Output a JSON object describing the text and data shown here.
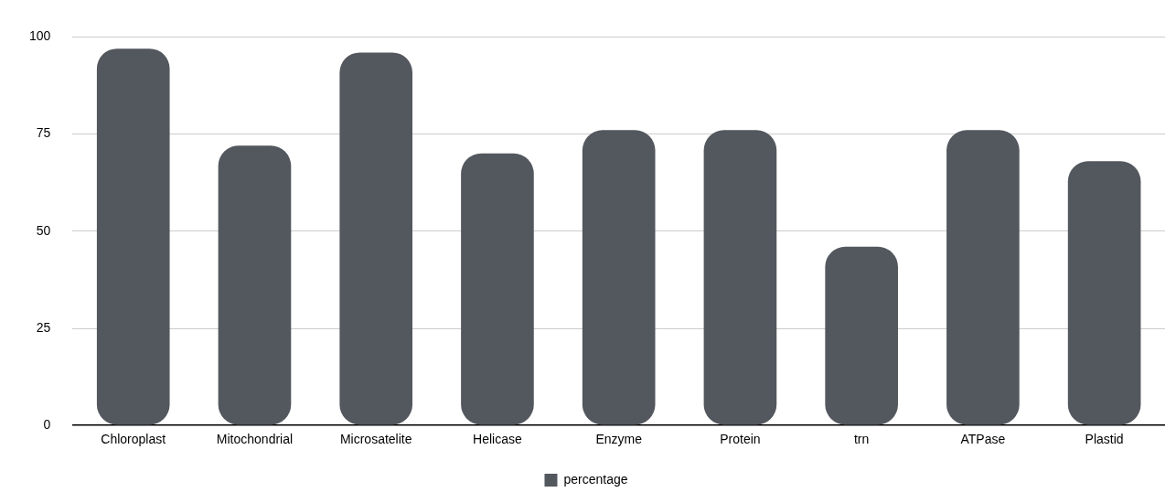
{
  "chart_data": {
    "type": "bar",
    "categories": [
      "Chloroplast",
      "Mitochondrial",
      "Microsatelite",
      "Helicase",
      "Enzyme",
      "Protein",
      "trn",
      "ATPase",
      "Plastid"
    ],
    "series": [
      {
        "name": "percentage",
        "color": "#53575e",
        "values": [
          97,
          72,
          96,
          70,
          76,
          76,
          46,
          76,
          68
        ]
      }
    ],
    "ylim": [
      0,
      100
    ],
    "yticks": [
      0,
      25,
      50,
      75,
      100
    ],
    "grid": "y",
    "legend": "bottom"
  }
}
